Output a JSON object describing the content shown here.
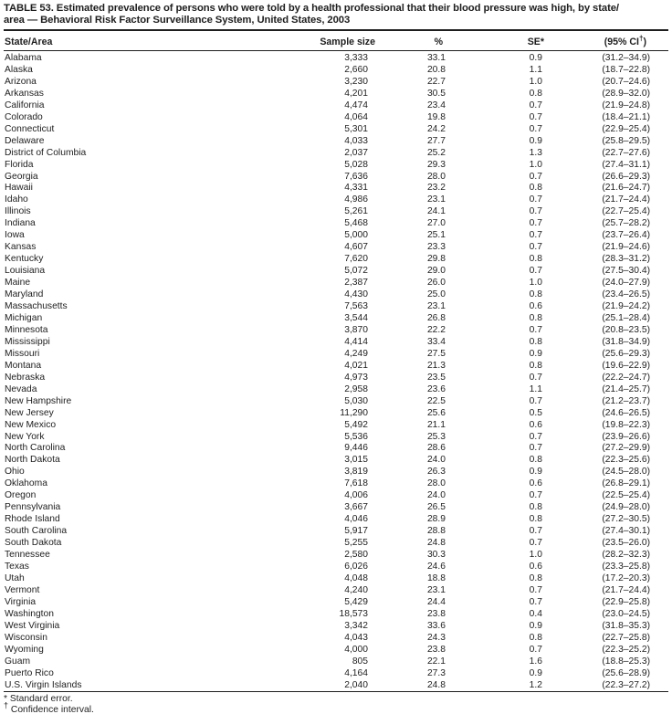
{
  "title": {
    "line1": "TABLE 53. Estimated prevalence of persons who were told by a health professional that their blood pressure was high, by state/",
    "line2": "area — Behavioral Risk Factor Surveillance System, United States, 2003"
  },
  "table": {
    "header": {
      "state": "State/Area",
      "sample": "Sample size",
      "pct": "%",
      "se_pre": "SE",
      "se_sup": "*",
      "ci_pre": "(95% CI",
      "ci_sup": "†",
      "ci_close": ")"
    },
    "rows": [
      {
        "state": "Alabama",
        "sample": "3,333",
        "pct": "33.1",
        "se": "0.9",
        "ci": "(31.2–34.9)"
      },
      {
        "state": "Alaska",
        "sample": "2,660",
        "pct": "20.8",
        "se": "1.1",
        "ci": "(18.7–22.8)"
      },
      {
        "state": "Arizona",
        "sample": "3,230",
        "pct": "22.7",
        "se": "1.0",
        "ci": "(20.7–24.6)"
      },
      {
        "state": "Arkansas",
        "sample": "4,201",
        "pct": "30.5",
        "se": "0.8",
        "ci": "(28.9–32.0)"
      },
      {
        "state": "California",
        "sample": "4,474",
        "pct": "23.4",
        "se": "0.7",
        "ci": "(21.9–24.8)"
      },
      {
        "state": "Colorado",
        "sample": "4,064",
        "pct": "19.8",
        "se": "0.7",
        "ci": "(18.4–21.1)"
      },
      {
        "state": "Connecticut",
        "sample": "5,301",
        "pct": "24.2",
        "se": "0.7",
        "ci": "(22.9–25.4)"
      },
      {
        "state": "Delaware",
        "sample": "4,033",
        "pct": "27.7",
        "se": "0.9",
        "ci": "(25.8–29.5)"
      },
      {
        "state": "District of Columbia",
        "sample": "2,037",
        "pct": "25.2",
        "se": "1.3",
        "ci": "(22.7–27.6)"
      },
      {
        "state": "Florida",
        "sample": "5,028",
        "pct": "29.3",
        "se": "1.0",
        "ci": "(27.4–31.1)"
      },
      {
        "state": "Georgia",
        "sample": "7,636",
        "pct": "28.0",
        "se": "0.7",
        "ci": "(26.6–29.3)"
      },
      {
        "state": "Hawaii",
        "sample": "4,331",
        "pct": "23.2",
        "se": "0.8",
        "ci": "(21.6–24.7)"
      },
      {
        "state": "Idaho",
        "sample": "4,986",
        "pct": "23.1",
        "se": "0.7",
        "ci": "(21.7–24.4)"
      },
      {
        "state": "Illinois",
        "sample": "5,261",
        "pct": "24.1",
        "se": "0.7",
        "ci": "(22.7–25.4)"
      },
      {
        "state": "Indiana",
        "sample": "5,468",
        "pct": "27.0",
        "se": "0.7",
        "ci": "(25.7–28.2)"
      },
      {
        "state": "Iowa",
        "sample": "5,000",
        "pct": "25.1",
        "se": "0.7",
        "ci": "(23.7–26.4)"
      },
      {
        "state": "Kansas",
        "sample": "4,607",
        "pct": "23.3",
        "se": "0.7",
        "ci": "(21.9–24.6)"
      },
      {
        "state": "Kentucky",
        "sample": "7,620",
        "pct": "29.8",
        "se": "0.8",
        "ci": "(28.3–31.2)"
      },
      {
        "state": "Louisiana",
        "sample": "5,072",
        "pct": "29.0",
        "se": "0.7",
        "ci": "(27.5–30.4)"
      },
      {
        "state": "Maine",
        "sample": "2,387",
        "pct": "26.0",
        "se": "1.0",
        "ci": "(24.0–27.9)"
      },
      {
        "state": "Maryland",
        "sample": "4,430",
        "pct": "25.0",
        "se": "0.8",
        "ci": "(23.4–26.5)"
      },
      {
        "state": "Massachusetts",
        "sample": "7,563",
        "pct": "23.1",
        "se": "0.6",
        "ci": "(21.9–24.2)"
      },
      {
        "state": "Michigan",
        "sample": "3,544",
        "pct": "26.8",
        "se": "0.8",
        "ci": "(25.1–28.4)"
      },
      {
        "state": "Minnesota",
        "sample": "3,870",
        "pct": "22.2",
        "se": "0.7",
        "ci": "(20.8–23.5)"
      },
      {
        "state": "Mississippi",
        "sample": "4,414",
        "pct": "33.4",
        "se": "0.8",
        "ci": "(31.8–34.9)"
      },
      {
        "state": "Missouri",
        "sample": "4,249",
        "pct": "27.5",
        "se": "0.9",
        "ci": "(25.6–29.3)"
      },
      {
        "state": "Montana",
        "sample": "4,021",
        "pct": "21.3",
        "se": "0.8",
        "ci": "(19.6–22.9)"
      },
      {
        "state": "Nebraska",
        "sample": "4,973",
        "pct": "23.5",
        "se": "0.7",
        "ci": "(22.2–24.7)"
      },
      {
        "state": "Nevada",
        "sample": "2,958",
        "pct": "23.6",
        "se": "1.1",
        "ci": "(21.4–25.7)"
      },
      {
        "state": "New Hampshire",
        "sample": "5,030",
        "pct": "22.5",
        "se": "0.7",
        "ci": "(21.2–23.7)"
      },
      {
        "state": "New Jersey",
        "sample": "11,290",
        "pct": "25.6",
        "se": "0.5",
        "ci": "(24.6–26.5)"
      },
      {
        "state": "New Mexico",
        "sample": "5,492",
        "pct": "21.1",
        "se": "0.6",
        "ci": "(19.8–22.3)"
      },
      {
        "state": "New York",
        "sample": "5,536",
        "pct": "25.3",
        "se": "0.7",
        "ci": "(23.9–26.6)"
      },
      {
        "state": "North Carolina",
        "sample": "9,446",
        "pct": "28.6",
        "se": "0.7",
        "ci": "(27.2–29.9)"
      },
      {
        "state": "North Dakota",
        "sample": "3,015",
        "pct": "24.0",
        "se": "0.8",
        "ci": "(22.3–25.6)"
      },
      {
        "state": "Ohio",
        "sample": "3,819",
        "pct": "26.3",
        "se": "0.9",
        "ci": "(24.5–28.0)"
      },
      {
        "state": "Oklahoma",
        "sample": "7,618",
        "pct": "28.0",
        "se": "0.6",
        "ci": "(26.8–29.1)"
      },
      {
        "state": "Oregon",
        "sample": "4,006",
        "pct": "24.0",
        "se": "0.7",
        "ci": "(22.5–25.4)"
      },
      {
        "state": "Pennsylvania",
        "sample": "3,667",
        "pct": "26.5",
        "se": "0.8",
        "ci": "(24.9–28.0)"
      },
      {
        "state": "Rhode Island",
        "sample": "4,046",
        "pct": "28.9",
        "se": "0.8",
        "ci": "(27.2–30.5)"
      },
      {
        "state": "South Carolina",
        "sample": "5,917",
        "pct": "28.8",
        "se": "0.7",
        "ci": "(27.4–30.1)"
      },
      {
        "state": "South Dakota",
        "sample": "5,255",
        "pct": "24.8",
        "se": "0.7",
        "ci": "(23.5–26.0)"
      },
      {
        "state": "Tennessee",
        "sample": "2,580",
        "pct": "30.3",
        "se": "1.0",
        "ci": "(28.2–32.3)"
      },
      {
        "state": "Texas",
        "sample": "6,026",
        "pct": "24.6",
        "se": "0.6",
        "ci": "(23.3–25.8)"
      },
      {
        "state": "Utah",
        "sample": "4,048",
        "pct": "18.8",
        "se": "0.8",
        "ci": "(17.2–20.3)"
      },
      {
        "state": "Vermont",
        "sample": "4,240",
        "pct": "23.1",
        "se": "0.7",
        "ci": "(21.7–24.4)"
      },
      {
        "state": "Virginia",
        "sample": "5,429",
        "pct": "24.4",
        "se": "0.7",
        "ci": "(22.9–25.8)"
      },
      {
        "state": "Washington",
        "sample": "18,573",
        "pct": "23.8",
        "se": "0.4",
        "ci": "(23.0–24.5)"
      },
      {
        "state": "West Virginia",
        "sample": "3,342",
        "pct": "33.6",
        "se": "0.9",
        "ci": "(31.8–35.3)"
      },
      {
        "state": "Wisconsin",
        "sample": "4,043",
        "pct": "24.3",
        "se": "0.8",
        "ci": "(22.7–25.8)"
      },
      {
        "state": "Wyoming",
        "sample": "4,000",
        "pct": "23.8",
        "se": "0.7",
        "ci": "(22.3–25.2)"
      },
      {
        "state": "Guam",
        "sample": "805",
        "pct": "22.1",
        "se": "1.6",
        "ci": "(18.8–25.3)"
      },
      {
        "state": "Puerto Rico",
        "sample": "4,164",
        "pct": "27.3",
        "se": "0.9",
        "ci": "(25.6–28.9)"
      },
      {
        "state": "U.S. Virgin Islands",
        "sample": "2,040",
        "pct": "24.8",
        "se": "1.2",
        "ci": "(22.3–27.2)"
      }
    ]
  },
  "footnotes": {
    "se_marker": "*",
    "se_text": "Standard error.",
    "ci_marker": "†",
    "ci_text": "Confidence interval."
  }
}
